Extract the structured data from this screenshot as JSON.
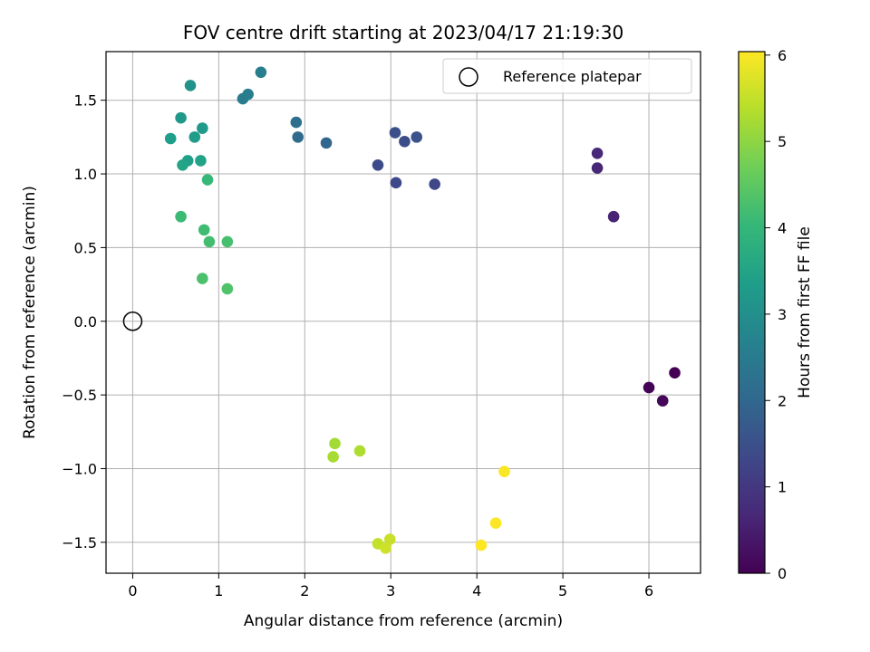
{
  "chart_data": {
    "type": "scatter",
    "title": "FOV centre drift starting at 2023/04/17 21:19:30",
    "xlabel": "Angular distance from reference (arcmin)",
    "ylabel": "Rotation from reference (arcmin)",
    "xlim": [
      -0.31,
      6.6
    ],
    "ylim": [
      -1.71,
      1.83
    ],
    "xticks": [
      0,
      1,
      2,
      3,
      4,
      5,
      6
    ],
    "yticks": [
      -1.5,
      -1.0,
      -0.5,
      0.0,
      0.5,
      1.0,
      1.5
    ],
    "xtick_labels": [
      "0",
      "1",
      "2",
      "3",
      "4",
      "5",
      "6"
    ],
    "ytick_labels": [
      "−1.5",
      "−1.0",
      "−0.5",
      "0.0",
      "0.5",
      "1.0",
      "1.5"
    ],
    "grid": true,
    "legend": {
      "placement": "top-right",
      "entries": [
        "Reference platepar"
      ]
    },
    "reference_point": {
      "x": 0,
      "y": 0
    },
    "colorbar": {
      "label": "Hours from first FF file",
      "colormap": "viridis",
      "range": [
        0,
        6.04
      ],
      "ticks": [
        0,
        1,
        2,
        3,
        4,
        5,
        6
      ],
      "tick_labels": [
        "0",
        "1",
        "2",
        "3",
        "4",
        "5",
        "6"
      ],
      "stops": [
        "#440154",
        "#482878",
        "#3e4989",
        "#31688e",
        "#26828e",
        "#1f9e89",
        "#35b779",
        "#6ece58",
        "#b5de2b",
        "#fde725"
      ]
    },
    "points": [
      {
        "x": 6.3,
        "y": -0.35,
        "h": 0.0
      },
      {
        "x": 6.0,
        "y": -0.45,
        "h": 0.05
      },
      {
        "x": 6.16,
        "y": -0.54,
        "h": 0.1
      },
      {
        "x": 5.59,
        "y": 0.71,
        "h": 0.6
      },
      {
        "x": 5.4,
        "y": 1.04,
        "h": 0.65
      },
      {
        "x": 5.4,
        "y": 1.14,
        "h": 0.7
      },
      {
        "x": 3.51,
        "y": 0.93,
        "h": 1.3
      },
      {
        "x": 3.06,
        "y": 0.94,
        "h": 1.35
      },
      {
        "x": 2.85,
        "y": 1.06,
        "h": 1.4
      },
      {
        "x": 3.16,
        "y": 1.22,
        "h": 1.45
      },
      {
        "x": 3.05,
        "y": 1.28,
        "h": 1.5
      },
      {
        "x": 3.3,
        "y": 1.25,
        "h": 1.55
      },
      {
        "x": 2.25,
        "y": 1.21,
        "h": 2.0
      },
      {
        "x": 1.92,
        "y": 1.25,
        "h": 2.1
      },
      {
        "x": 1.9,
        "y": 1.35,
        "h": 2.2
      },
      {
        "x": 1.28,
        "y": 1.51,
        "h": 2.5
      },
      {
        "x": 1.34,
        "y": 1.54,
        "h": 2.55
      },
      {
        "x": 1.49,
        "y": 1.69,
        "h": 2.6
      },
      {
        "x": 0.67,
        "y": 1.6,
        "h": 3.1
      },
      {
        "x": 0.56,
        "y": 1.38,
        "h": 3.2
      },
      {
        "x": 0.81,
        "y": 1.31,
        "h": 3.25
      },
      {
        "x": 0.72,
        "y": 1.25,
        "h": 3.3
      },
      {
        "x": 0.44,
        "y": 1.24,
        "h": 3.35
      },
      {
        "x": 0.64,
        "y": 1.09,
        "h": 3.4
      },
      {
        "x": 0.79,
        "y": 1.09,
        "h": 3.45
      },
      {
        "x": 0.58,
        "y": 1.06,
        "h": 3.5
      },
      {
        "x": 0.87,
        "y": 0.96,
        "h": 4.05
      },
      {
        "x": 0.56,
        "y": 0.71,
        "h": 4.1
      },
      {
        "x": 0.83,
        "y": 0.62,
        "h": 4.15
      },
      {
        "x": 0.89,
        "y": 0.54,
        "h": 4.2
      },
      {
        "x": 1.1,
        "y": 0.54,
        "h": 4.25
      },
      {
        "x": 0.81,
        "y": 0.29,
        "h": 4.3
      },
      {
        "x": 1.1,
        "y": 0.22,
        "h": 4.35
      },
      {
        "x": 2.35,
        "y": -0.83,
        "h": 5.2
      },
      {
        "x": 2.33,
        "y": -0.92,
        "h": 5.25
      },
      {
        "x": 2.64,
        "y": -0.88,
        "h": 5.3
      },
      {
        "x": 2.85,
        "y": -1.51,
        "h": 5.5
      },
      {
        "x": 2.99,
        "y": -1.48,
        "h": 5.55
      },
      {
        "x": 2.94,
        "y": -1.54,
        "h": 5.6
      },
      {
        "x": 4.32,
        "y": -1.02,
        "h": 6.0
      },
      {
        "x": 4.22,
        "y": -1.37,
        "h": 6.02
      },
      {
        "x": 4.05,
        "y": -1.52,
        "h": 6.04
      }
    ]
  }
}
